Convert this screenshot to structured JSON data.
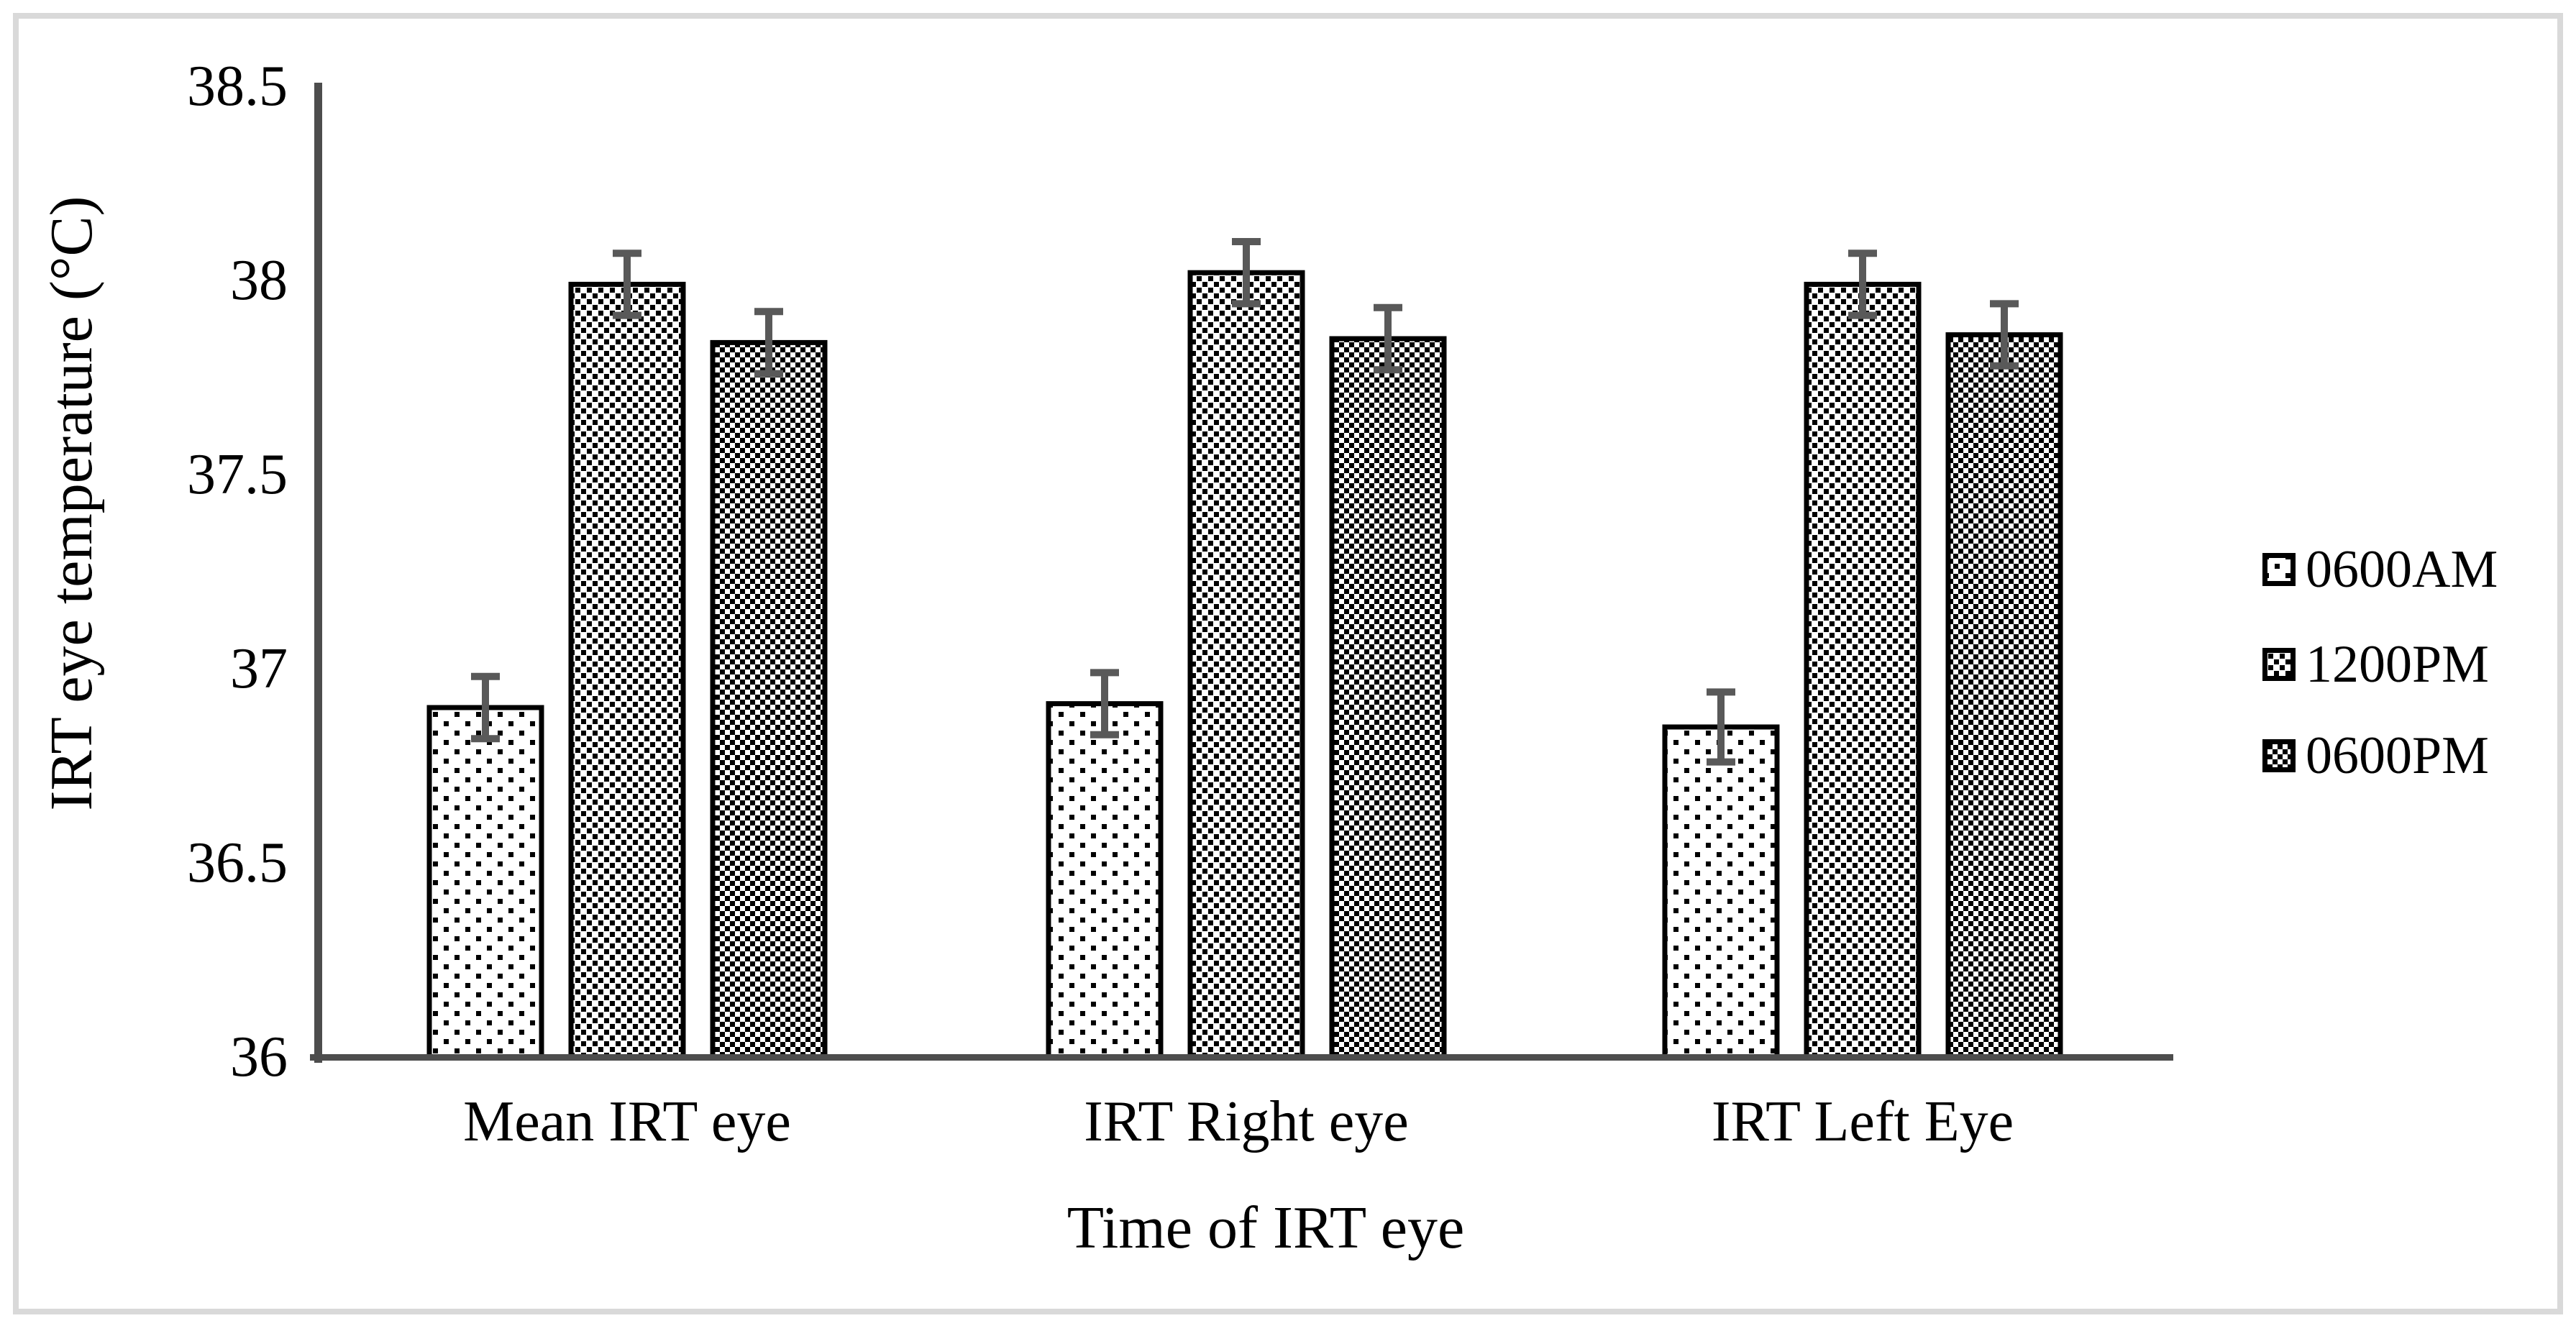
{
  "chart_data": {
    "type": "bar",
    "title": "",
    "categories": [
      "Mean IRT eye",
      "IRT Right eye",
      "IRT Left Eye"
    ],
    "series": [
      {
        "name": "0600AM",
        "pattern": "sparse-dots",
        "values": [
          36.9,
          36.91,
          36.85
        ],
        "errors": [
          0.08,
          0.08,
          0.09
        ]
      },
      {
        "name": "1200PM",
        "pattern": "dense-dots",
        "values": [
          37.99,
          38.02,
          37.99
        ],
        "errors": [
          0.08,
          0.08,
          0.08
        ]
      },
      {
        "name": "0600PM",
        "pattern": "checkerboard",
        "values": [
          37.84,
          37.85,
          37.86
        ],
        "errors": [
          0.08,
          0.08,
          0.08
        ]
      }
    ],
    "xlabel": "Time of IRT eye",
    "ylabel": "IRT eye temperature (°C)",
    "ylim": [
      36,
      38.5
    ],
    "ytick_step": 0.5,
    "yticks": [
      "36",
      "36.5",
      "37",
      "37.5",
      "38",
      "38.5"
    ],
    "grid": false,
    "legend_position": "right",
    "bar_fill": "#ffffff",
    "bar_stroke": "#000000",
    "error_bar_color": "#595959",
    "axis_color": "#4d4d4d",
    "text_color": "#000000",
    "frame_color": "#d9d9d9"
  }
}
